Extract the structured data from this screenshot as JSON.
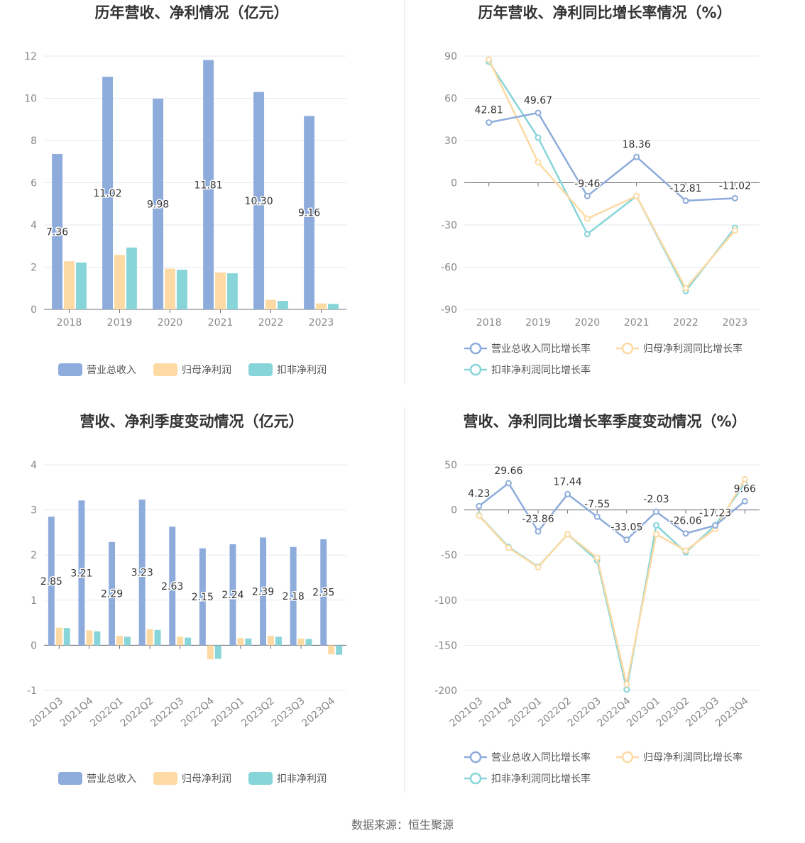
{
  "footer": {
    "source": "数据来源：恒生聚源"
  },
  "chart_data": [
    {
      "id": "annual-bar",
      "type": "bar",
      "title": "历年营收、净利情况（亿元）",
      "categories": [
        "2018",
        "2019",
        "2020",
        "2021",
        "2022",
        "2023"
      ],
      "ylim": [
        0,
        12
      ],
      "yticks": [
        0,
        2,
        4,
        6,
        8,
        10,
        12
      ],
      "grid": true,
      "legend_position": "bottom",
      "series": [
        {
          "name": "营业总收入",
          "color": "#8eacdb",
          "values": [
            7.36,
            11.02,
            9.98,
            11.81,
            10.3,
            9.16
          ],
          "labels": [
            "7.36",
            "11.02",
            "9.98",
            "11.81",
            "10.30",
            "9.16"
          ]
        },
        {
          "name": "归母净利润",
          "color": "#fddaa3",
          "values": [
            2.28,
            2.58,
            1.93,
            1.75,
            0.45,
            0.28
          ]
        },
        {
          "name": "扣非净利润",
          "color": "#87d5d9",
          "values": [
            2.22,
            2.93,
            1.88,
            1.71,
            0.4,
            0.26
          ]
        }
      ]
    },
    {
      "id": "annual-line",
      "type": "line",
      "title": "历年营收、净利同比增长率情况（%）",
      "categories": [
        "2018",
        "2019",
        "2020",
        "2021",
        "2022",
        "2023"
      ],
      "ylim": [
        -90,
        90
      ],
      "yticks": [
        -90,
        -60,
        -30,
        0,
        30,
        60,
        90
      ],
      "grid": true,
      "legend_position": "bottom",
      "series": [
        {
          "name": "营业总收入同比增长率",
          "color": "#8eacdb",
          "values": [
            42.81,
            49.67,
            -9.46,
            18.36,
            -12.81,
            -11.02
          ],
          "labels": [
            "42.81",
            "49.67",
            "-9.46",
            "18.36",
            "-12.81",
            "-11.02"
          ]
        },
        {
          "name": "归母净利润同比增长率",
          "color": "#fddaa3",
          "values": [
            87.5,
            14.5,
            -25.5,
            -9.5,
            -75.0,
            -34.0
          ]
        },
        {
          "name": "扣非净利润同比增长率",
          "color": "#87d5d9",
          "values": [
            86.0,
            32.0,
            -36.5,
            -9.5,
            -77.0,
            -32.0
          ]
        }
      ]
    },
    {
      "id": "quarter-bar",
      "type": "bar",
      "title": "营收、净利季度变动情况（亿元）",
      "categories": [
        "2021Q3",
        "2021Q4",
        "2022Q1",
        "2022Q2",
        "2022Q3",
        "2022Q4",
        "2023Q1",
        "2023Q2",
        "2023Q3",
        "2023Q4"
      ],
      "ylim": [
        -1,
        4
      ],
      "yticks": [
        -1,
        0,
        1,
        2,
        3,
        4
      ],
      "grid": true,
      "legend_position": "bottom",
      "series": [
        {
          "name": "营业总收入",
          "color": "#8eacdb",
          "values": [
            2.85,
            3.21,
            2.29,
            3.23,
            2.63,
            2.15,
            2.24,
            2.39,
            2.18,
            2.35
          ],
          "labels": [
            "2.85",
            "3.21",
            "2.29",
            "3.23",
            "2.63",
            "2.15",
            "2.24",
            "2.39",
            "2.18",
            "2.35"
          ]
        },
        {
          "name": "归母净利润",
          "color": "#fddaa3",
          "values": [
            0.39,
            0.33,
            0.21,
            0.36,
            0.19,
            -0.31,
            0.16,
            0.21,
            0.15,
            -0.2
          ]
        },
        {
          "name": "扣非净利润",
          "color": "#87d5d9",
          "values": [
            0.38,
            0.31,
            0.19,
            0.34,
            0.17,
            -0.3,
            0.15,
            0.19,
            0.14,
            -0.21
          ]
        }
      ]
    },
    {
      "id": "quarter-line",
      "type": "line",
      "title": "营收、净利同比增长率季度变动情况（%）",
      "categories": [
        "2021Q3",
        "2021Q4",
        "2022Q1",
        "2022Q2",
        "2022Q3",
        "2022Q4",
        "2023Q1",
        "2023Q2",
        "2023Q3",
        "2023Q4"
      ],
      "ylim": [
        -200,
        50
      ],
      "yticks": [
        -200,
        -150,
        -100,
        -50,
        0,
        50
      ],
      "grid": true,
      "legend_position": "bottom",
      "series": [
        {
          "name": "营业总收入同比增长率",
          "color": "#8eacdb",
          "values": [
            4.23,
            29.66,
            -23.86,
            17.44,
            -7.55,
            -33.05,
            -2.03,
            -26.06,
            -17.23,
            9.66
          ],
          "labels": [
            "4.23",
            "29.66",
            "-23.86",
            "17.44",
            "-7.55",
            "-33.05",
            "-2.03",
            "-26.06",
            "-17.23",
            "9.66"
          ]
        },
        {
          "name": "归母净利润同比增长率",
          "color": "#fddaa3",
          "values": [
            -6.5,
            -42.0,
            -63.5,
            -27.0,
            -53.0,
            -193.0,
            -27.0,
            -45.0,
            -21.0,
            34.0
          ]
        },
        {
          "name": "扣非净利润同比增长率",
          "color": "#87d5d9",
          "values": [
            -6.0,
            -41.0,
            -63.0,
            -27.0,
            -56.0,
            -199.0,
            -17.0,
            -47.0,
            -17.0,
            29.0
          ]
        }
      ]
    }
  ]
}
